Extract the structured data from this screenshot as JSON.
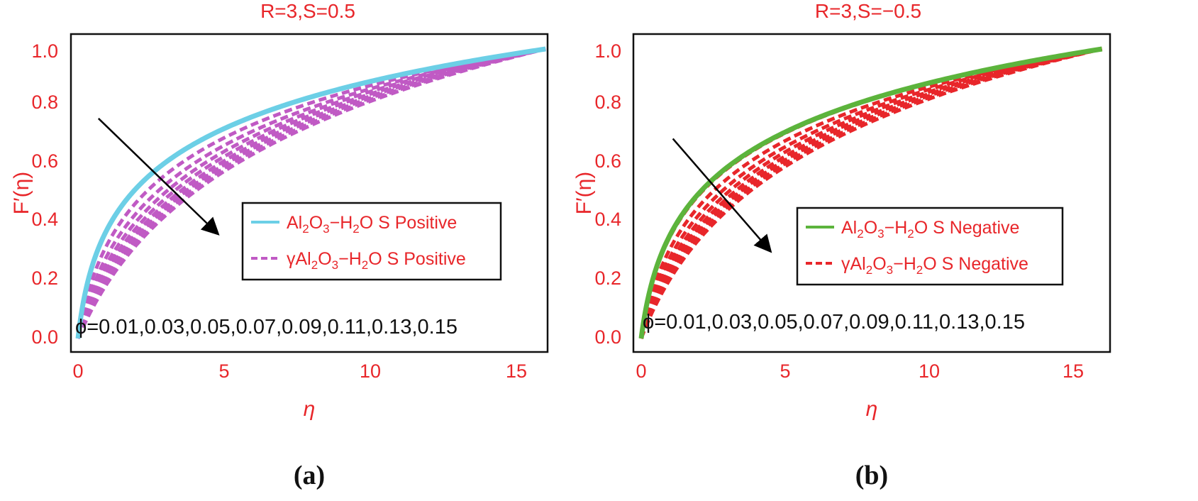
{
  "figure": {
    "captions": [
      "(a)",
      "(b)"
    ]
  },
  "chart_data": [
    {
      "type": "line",
      "title": "R=3,S=0.5",
      "xlabel": "η",
      "ylabel": "F′(η)",
      "xlim": [
        0,
        16
      ],
      "ylim": [
        0,
        1
      ],
      "xticks": [
        "0",
        "5",
        "10",
        "15"
      ],
      "yticks": [
        "0.0",
        "0.2",
        "0.4",
        "0.6",
        "0.8",
        "1.0"
      ],
      "phi_label": "ϕ=0.01,0.03,0.05,0.07,0.09,0.11,0.13,0.15",
      "phi_values": [
        0.01,
        0.03,
        0.05,
        0.07,
        0.09,
        0.11,
        0.13,
        0.15
      ],
      "eta_max": 16,
      "arrow": {
        "from": [
          0.7,
          0.76
        ],
        "to": [
          4.8,
          0.36
        ]
      },
      "series": [
        {
          "name": "Al₂O₃−H₂O S Positive",
          "legend_parts": [
            "Al",
            "2",
            "O",
            "3",
            "−H",
            "2",
            "O S Positive"
          ],
          "style": "solid",
          "color": "#6ccfe6",
          "shape_k": 0.27,
          "y_at": {
            "eta": [
              1,
              2,
              5,
              10,
              15
            ],
            "F": [
              0.63,
              0.73,
              0.85,
              0.93,
              0.98
            ]
          }
        },
        {
          "name": "γAl₂O₃−H₂O S Positive",
          "legend_parts": [
            "γAl",
            "2",
            "O",
            "3",
            "−H",
            "2",
            "O S Positive"
          ],
          "style": "dashed",
          "color": "#c05ac4",
          "shape_k_range": [
            0.45,
            1.85
          ],
          "y_at_eta5_range": [
            0.83,
            0.46
          ]
        }
      ]
    },
    {
      "type": "line",
      "title": "R=3,S=−0.5",
      "xlabel": "η",
      "ylabel": "F′(η)",
      "xlim": [
        0,
        16
      ],
      "ylim": [
        0,
        1
      ],
      "xticks": [
        "0",
        "5",
        "10",
        "15"
      ],
      "yticks": [
        "0.0",
        "0.2",
        "0.4",
        "0.6",
        "0.8",
        "1.0"
      ],
      "phi_label": "ϕ=0.01,0.03,0.05,0.07,0.09,0.11,0.13,0.15",
      "phi_values": [
        0.01,
        0.03,
        0.05,
        0.07,
        0.09,
        0.11,
        0.13,
        0.15
      ],
      "eta_max": 16,
      "arrow": {
        "from": [
          1.1,
          0.69
        ],
        "to": [
          4.5,
          0.3
        ]
      },
      "series": [
        {
          "name": "Al₂O₃−H₂O S Negative",
          "legend_parts": [
            "Al",
            "2",
            "O",
            "3",
            "−H",
            "2",
            "O S Negative"
          ],
          "style": "solid",
          "color": "#5cb43c",
          "shape_k": 0.33,
          "y_at": {
            "eta": [
              1,
              2,
              5,
              10,
              15
            ],
            "F": [
              0.52,
              0.62,
              0.79,
              0.92,
              0.98
            ]
          }
        },
        {
          "name": "γAl₂O₃−H₂O S Negative",
          "legend_parts": [
            "γAl",
            "2",
            "O",
            "3",
            "−H",
            "2",
            "O S Negative"
          ],
          "style": "dashed",
          "color": "#e8262a",
          "shape_k_range": [
            0.35,
            1.55
          ],
          "y_at_eta5_range": [
            0.78,
            0.45
          ]
        }
      ]
    }
  ]
}
